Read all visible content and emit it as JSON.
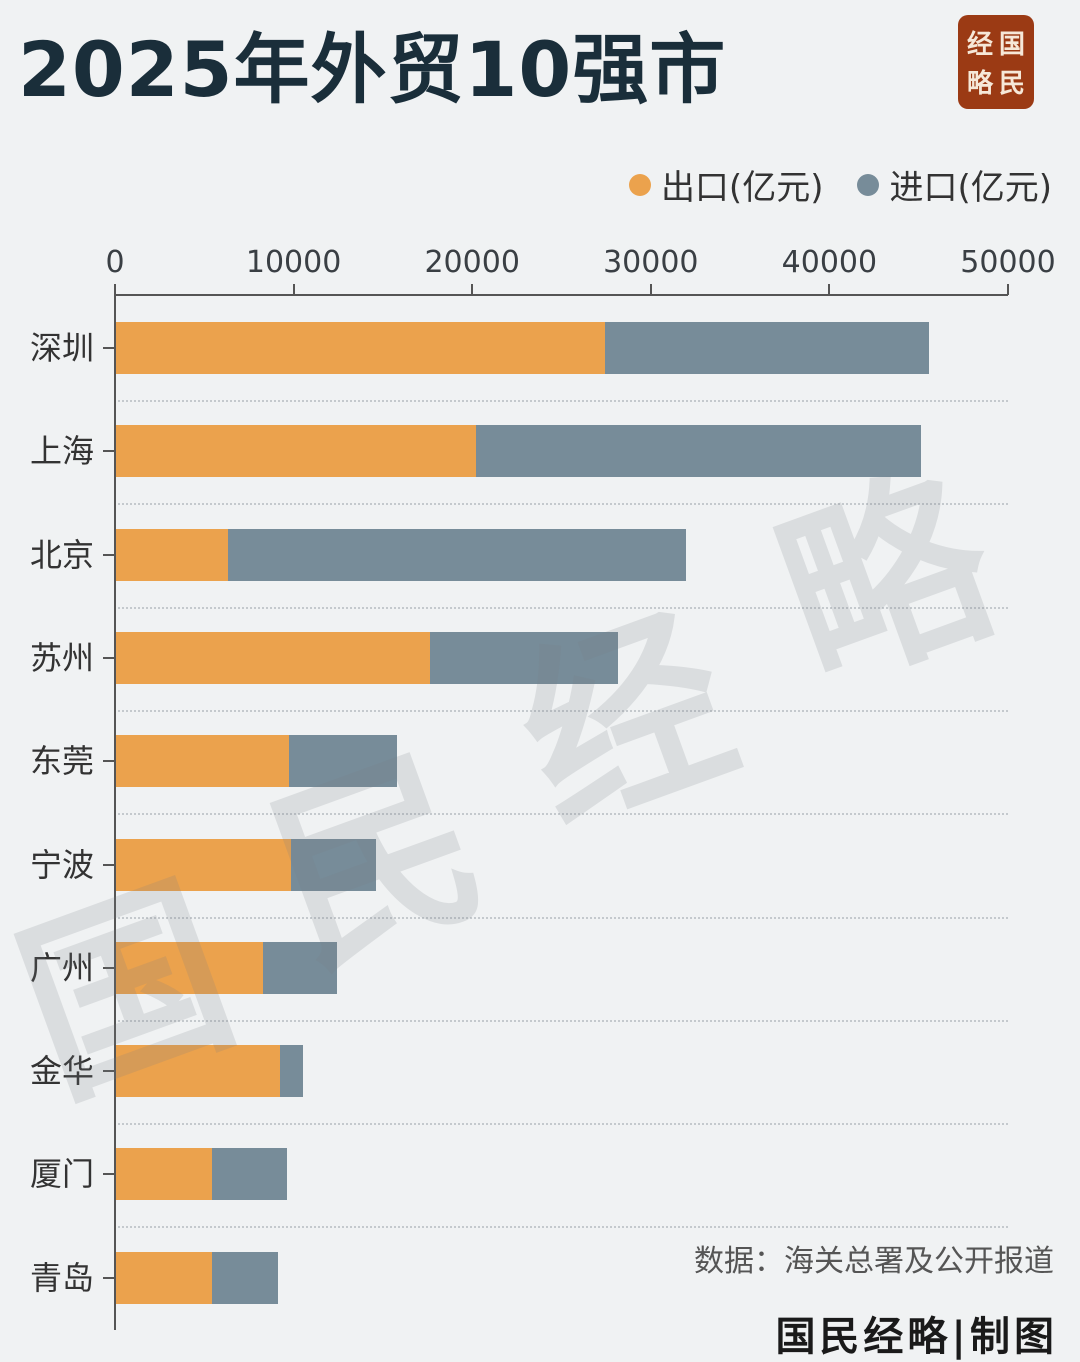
{
  "title": "2025年外贸10强市",
  "logo": {
    "chars": [
      "经",
      "国",
      "略",
      "民"
    ],
    "color": "#9b3a14"
  },
  "legend": [
    {
      "label": "出口(亿元)",
      "color": "#eba24d"
    },
    {
      "label": "进口(亿元)",
      "color": "#778c99"
    }
  ],
  "source": "数据：海关总署及公开报道",
  "footer": "国民经略|制图",
  "watermark": [
    "国",
    "民",
    "经",
    "略"
  ],
  "chart_data": {
    "type": "bar",
    "orientation": "horizontal",
    "stacked": true,
    "title": "2025年外贸10强市",
    "xlabel": "",
    "ylabel": "",
    "xlim": [
      0,
      50000
    ],
    "x_ticks": [
      "0",
      "10000",
      "20000",
      "30000",
      "40000",
      "50000"
    ],
    "categories": [
      "深圳",
      "上海",
      "北京",
      "苏州",
      "东莞",
      "宁波",
      "广州",
      "金华",
      "厦门",
      "青岛"
    ],
    "series": [
      {
        "name": "出口(亿元)",
        "color": "#eba24d",
        "values": [
          27400,
          20150,
          6270,
          17600,
          9700,
          9800,
          8230,
          9180,
          5380,
          5380
        ]
      },
      {
        "name": "进口(亿元)",
        "color": "#778c99",
        "values": [
          18100,
          24950,
          25630,
          10500,
          6030,
          4760,
          4150,
          1290,
          4200,
          3690
        ]
      }
    ],
    "legend_position": "top-right",
    "grid": "dotted row separators"
  }
}
